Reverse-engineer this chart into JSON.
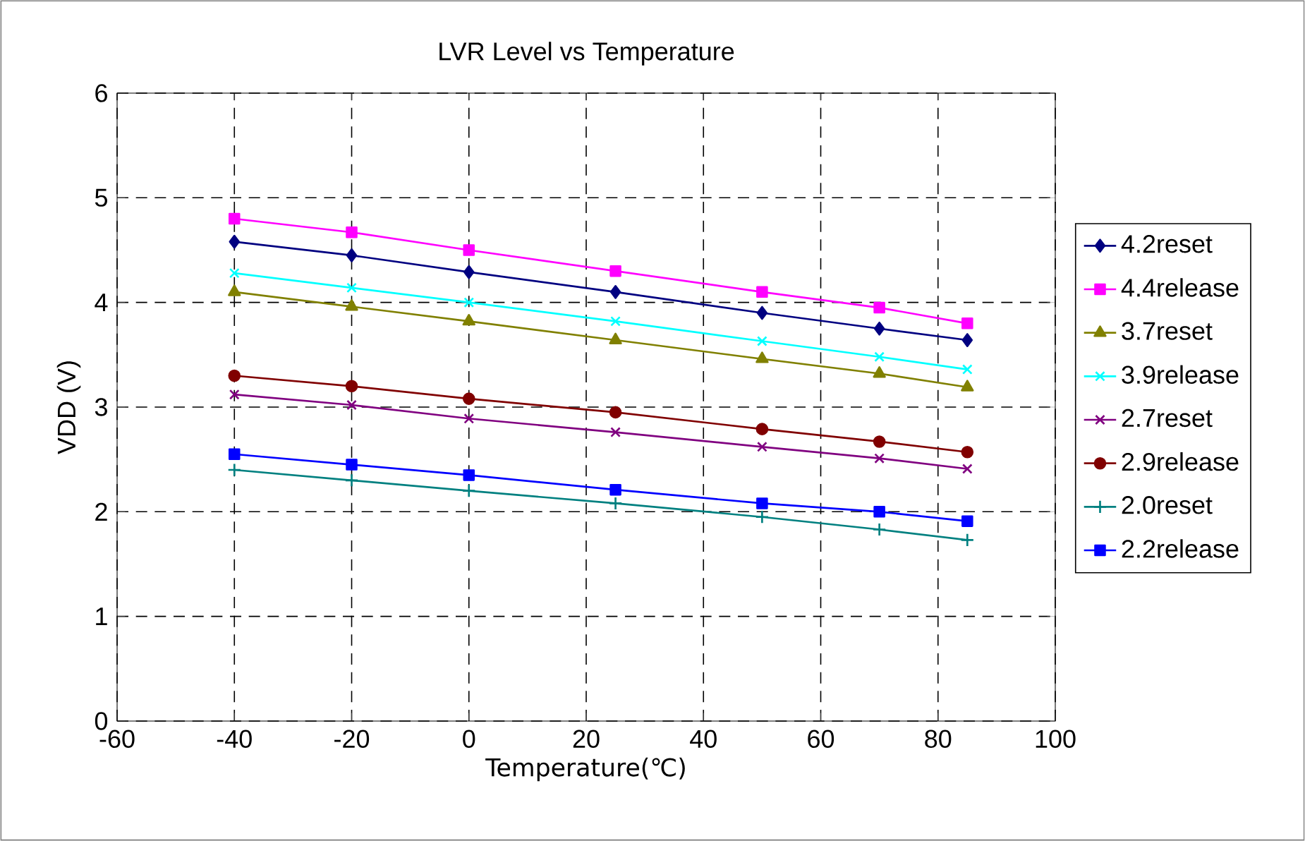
{
  "chart_data": {
    "type": "line",
    "title": "LVR Level vs Temperature",
    "xlabel": "Temperature(℃)",
    "ylabel": "VDD (V)",
    "x": [
      -40,
      -20,
      0,
      25,
      50,
      70,
      85
    ],
    "xlim": [
      -60,
      100
    ],
    "xticks": [
      -60,
      -40,
      -20,
      0,
      20,
      40,
      60,
      80,
      100
    ],
    "ylim": [
      0,
      6
    ],
    "yticks": [
      0,
      1,
      2,
      3,
      4,
      5,
      6
    ],
    "grid": true,
    "legend": "right",
    "line_style": "solid",
    "series": [
      {
        "name": "4.2reset",
        "color": "#000080",
        "marker": "diamond",
        "values": [
          4.58,
          4.45,
          4.29,
          4.1,
          3.9,
          3.75,
          3.64
        ]
      },
      {
        "name": "4.4release",
        "color": "#ff00ff",
        "marker": "square",
        "values": [
          4.8,
          4.67,
          4.5,
          4.3,
          4.1,
          3.95,
          3.8
        ]
      },
      {
        "name": "3.7reset",
        "color": "#808000",
        "marker": "triangle",
        "values": [
          4.1,
          3.96,
          3.82,
          3.64,
          3.46,
          3.32,
          3.19
        ]
      },
      {
        "name": "3.9release",
        "color": "#00ffff",
        "marker": "cross",
        "values": [
          4.28,
          4.14,
          4.0,
          3.82,
          3.63,
          3.48,
          3.36
        ]
      },
      {
        "name": "2.7reset",
        "color": "#800080",
        "marker": "cross",
        "values": [
          3.12,
          3.02,
          2.89,
          2.76,
          2.62,
          2.51,
          2.41
        ]
      },
      {
        "name": "2.9release",
        "color": "#800000",
        "marker": "circle",
        "values": [
          3.3,
          3.2,
          3.08,
          2.95,
          2.79,
          2.67,
          2.57
        ]
      },
      {
        "name": "2.0reset",
        "color": "#008080",
        "marker": "plus",
        "values": [
          2.4,
          2.3,
          2.2,
          2.08,
          1.95,
          1.83,
          1.73
        ]
      },
      {
        "name": "2.2release",
        "color": "#0000ff",
        "marker": "square",
        "values": [
          2.55,
          2.45,
          2.35,
          2.21,
          2.08,
          2.0,
          1.91
        ]
      }
    ]
  }
}
